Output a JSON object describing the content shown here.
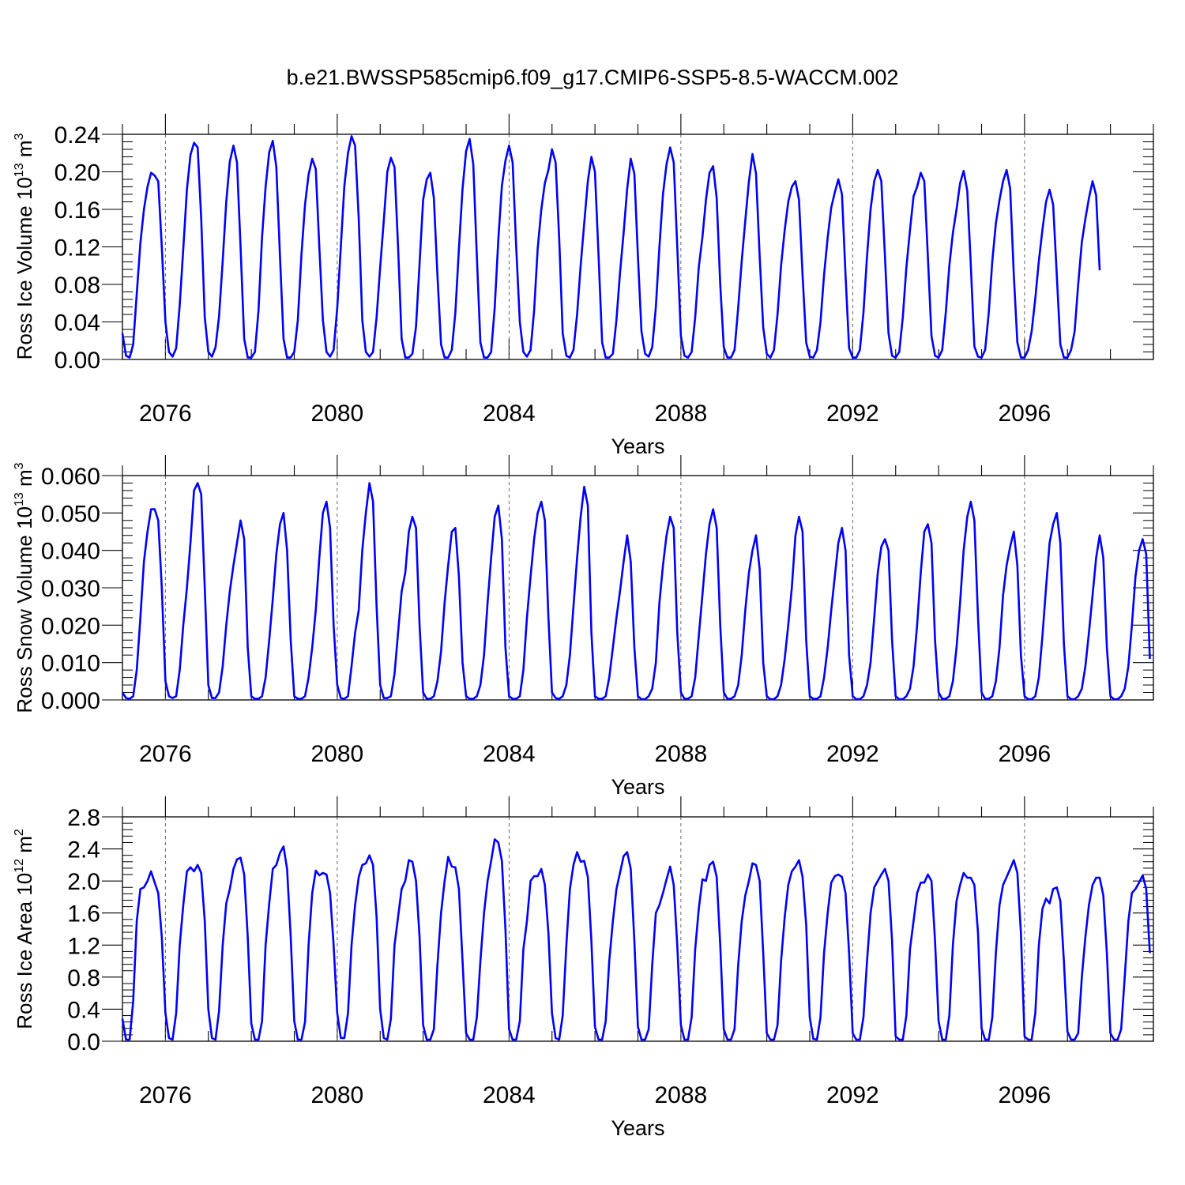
{
  "title": "b.e21.BWSSP585cmip6.f09_g17.CMIP6-SSP5-8.5-WACCM.002",
  "line_color": "#0000ff",
  "chart_data": [
    {
      "type": "line",
      "ylabel": "Ross Ice Volume 10",
      "ylabel_sup": "13",
      "ylabel_unit": " m",
      "ylabel_unit_sup": "3",
      "xlabel": "Years",
      "xlim": [
        2075,
        2099
      ],
      "ylim": [
        0.0,
        0.24
      ],
      "yticks": [
        "0.00",
        "0.04",
        "0.08",
        "0.12",
        "0.16",
        "0.20",
        "0.24"
      ],
      "xticks": [
        "2076",
        "2080",
        "2084",
        "2088",
        "2092",
        "2096"
      ],
      "grid_vertical_dashed": true,
      "series": [
        {
          "start": 2075.0,
          "step": 0.0833333,
          "peaks": [
            0.199,
            0.231,
            0.228,
            0.233,
            0.214,
            0.238,
            0.215,
            0.199,
            0.235,
            0.228,
            0.224,
            0.216,
            0.214,
            0.226,
            0.206,
            0.219,
            0.19,
            0.192,
            0.202,
            0.199,
            0.201,
            0.202,
            0.181,
            0.19
          ],
          "values": [
            0.028,
            0.004,
            0.002,
            0.016,
            0.07,
            0.124,
            0.16,
            0.184,
            0.199,
            0.196,
            0.19,
            0.12,
            0.04,
            0.008,
            0.003,
            0.012,
            0.058,
            0.118,
            0.181,
            0.218,
            0.231,
            0.226,
            0.15,
            0.045,
            0.008,
            0.003,
            0.013,
            0.046,
            0.105,
            0.168,
            0.211,
            0.228,
            0.21,
            0.12,
            0.022,
            0.002,
            0.002,
            0.008,
            0.052,
            0.13,
            0.184,
            0.221,
            0.233,
            0.205,
            0.11,
            0.022,
            0.002,
            0.002,
            0.008,
            0.042,
            0.112,
            0.165,
            0.197,
            0.214,
            0.203,
            0.12,
            0.042,
            0.008,
            0.003,
            0.01,
            0.055,
            0.12,
            0.185,
            0.22,
            0.238,
            0.228,
            0.15,
            0.042,
            0.008,
            0.003,
            0.008,
            0.045,
            0.098,
            0.148,
            0.2,
            0.215,
            0.205,
            0.12,
            0.022,
            0.002,
            0.002,
            0.006,
            0.035,
            0.102,
            0.17,
            0.192,
            0.199,
            0.172,
            0.09,
            0.016,
            0.002,
            0.002,
            0.01,
            0.05,
            0.118,
            0.182,
            0.222,
            0.235,
            0.208,
            0.11,
            0.018,
            0.002,
            0.002,
            0.008,
            0.055,
            0.128,
            0.185,
            0.212,
            0.228,
            0.21,
            0.12,
            0.04,
            0.008,
            0.003,
            0.01,
            0.052,
            0.118,
            0.16,
            0.188,
            0.202,
            0.224,
            0.21,
            0.13,
            0.028,
            0.004,
            0.002,
            0.01,
            0.048,
            0.1,
            0.145,
            0.19,
            0.216,
            0.2,
            0.11,
            0.018,
            0.002,
            0.002,
            0.006,
            0.042,
            0.092,
            0.135,
            0.182,
            0.214,
            0.198,
            0.11,
            0.03,
            0.006,
            0.003,
            0.013,
            0.056,
            0.12,
            0.176,
            0.208,
            0.226,
            0.21,
            0.12,
            0.025,
            0.004,
            0.002,
            0.008,
            0.045,
            0.098,
            0.13,
            0.17,
            0.199,
            0.206,
            0.172,
            0.08,
            0.013,
            0.002,
            0.002,
            0.01,
            0.055,
            0.105,
            0.148,
            0.19,
            0.219,
            0.198,
            0.11,
            0.034,
            0.006,
            0.002,
            0.01,
            0.048,
            0.1,
            0.138,
            0.168,
            0.184,
            0.19,
            0.17,
            0.09,
            0.018,
            0.003,
            0.002,
            0.01,
            0.04,
            0.09,
            0.13,
            0.162,
            0.178,
            0.192,
            0.176,
            0.09,
            0.012,
            0.002,
            0.002,
            0.01,
            0.05,
            0.11,
            0.16,
            0.19,
            0.202,
            0.19,
            0.11,
            0.028,
            0.004,
            0.002,
            0.008,
            0.045,
            0.098,
            0.138,
            0.174,
            0.184,
            0.199,
            0.19,
            0.11,
            0.025,
            0.004,
            0.002,
            0.01,
            0.05,
            0.1,
            0.135,
            0.16,
            0.188,
            0.201,
            0.18,
            0.1,
            0.014,
            0.003,
            0.002,
            0.01,
            0.05,
            0.105,
            0.145,
            0.17,
            0.19,
            0.202,
            0.182,
            0.09,
            0.018,
            0.002,
            0.002,
            0.01,
            0.03,
            0.065,
            0.105,
            0.138,
            0.168,
            0.181,
            0.165,
            0.09,
            0.016,
            0.002,
            0.002,
            0.01,
            0.03,
            0.08,
            0.125,
            0.15,
            0.172,
            0.19,
            0.175,
            0.095
          ]
        }
      ]
    },
    {
      "type": "line",
      "ylabel": "Ross Snow Volume 10",
      "ylabel_sup": "13",
      "ylabel_unit": " m",
      "ylabel_unit_sup": "3",
      "xlabel": "Years",
      "xlim": [
        2075,
        2099
      ],
      "ylim": [
        0.0,
        0.06
      ],
      "yticks": [
        "0.000",
        "0.010",
        "0.020",
        "0.030",
        "0.040",
        "0.050",
        "0.060"
      ],
      "xticks": [
        "2076",
        "2080",
        "2084",
        "2088",
        "2092",
        "2096"
      ],
      "grid_vertical_dashed": true,
      "series": [
        {
          "start": 2075.0,
          "step": 0.0833333,
          "values": [
            0.002,
            0.0005,
            0.0003,
            0.001,
            0.008,
            0.022,
            0.037,
            0.045,
            0.051,
            0.051,
            0.048,
            0.03,
            0.005,
            0.001,
            0.0005,
            0.001,
            0.008,
            0.02,
            0.03,
            0.042,
            0.056,
            0.058,
            0.055,
            0.03,
            0.004,
            0.0005,
            0.0005,
            0.002,
            0.009,
            0.02,
            0.029,
            0.036,
            0.042,
            0.048,
            0.043,
            0.014,
            0.001,
            0.0003,
            0.0003,
            0.001,
            0.006,
            0.016,
            0.027,
            0.039,
            0.047,
            0.05,
            0.04,
            0.016,
            0.001,
            0.0003,
            0.0003,
            0.001,
            0.006,
            0.014,
            0.024,
            0.038,
            0.05,
            0.053,
            0.046,
            0.02,
            0.004,
            0.0005,
            0.0003,
            0.001,
            0.009,
            0.018,
            0.024,
            0.04,
            0.05,
            0.058,
            0.053,
            0.025,
            0.004,
            0.0005,
            0.0005,
            0.001,
            0.007,
            0.018,
            0.029,
            0.034,
            0.045,
            0.049,
            0.046,
            0.02,
            0.002,
            0.0003,
            0.0003,
            0.001,
            0.005,
            0.013,
            0.026,
            0.036,
            0.045,
            0.046,
            0.033,
            0.01,
            0.001,
            0.0003,
            0.0003,
            0.001,
            0.004,
            0.012,
            0.026,
            0.038,
            0.049,
            0.052,
            0.043,
            0.014,
            0.001,
            0.0003,
            0.0003,
            0.001,
            0.008,
            0.022,
            0.033,
            0.043,
            0.05,
            0.053,
            0.048,
            0.022,
            0.002,
            0.0005,
            0.0003,
            0.001,
            0.004,
            0.012,
            0.025,
            0.038,
            0.049,
            0.057,
            0.052,
            0.018,
            0.001,
            0.0003,
            0.0003,
            0.001,
            0.006,
            0.014,
            0.022,
            0.029,
            0.037,
            0.044,
            0.037,
            0.014,
            0.001,
            0.0002,
            0.0002,
            0.001,
            0.003,
            0.01,
            0.026,
            0.036,
            0.044,
            0.049,
            0.046,
            0.018,
            0.002,
            0.0003,
            0.0003,
            0.001,
            0.006,
            0.017,
            0.028,
            0.039,
            0.047,
            0.051,
            0.046,
            0.02,
            0.002,
            0.0003,
            0.0003,
            0.001,
            0.004,
            0.012,
            0.024,
            0.034,
            0.04,
            0.044,
            0.035,
            0.01,
            0.001,
            0.0002,
            0.0002,
            0.001,
            0.004,
            0.011,
            0.02,
            0.03,
            0.044,
            0.049,
            0.045,
            0.016,
            0.001,
            0.0003,
            0.0003,
            0.001,
            0.006,
            0.014,
            0.024,
            0.033,
            0.042,
            0.046,
            0.04,
            0.012,
            0.001,
            0.0002,
            0.0002,
            0.001,
            0.004,
            0.01,
            0.022,
            0.034,
            0.041,
            0.043,
            0.04,
            0.016,
            0.001,
            0.0002,
            0.0002,
            0.001,
            0.003,
            0.009,
            0.02,
            0.034,
            0.045,
            0.047,
            0.042,
            0.016,
            0.002,
            0.0003,
            0.0003,
            0.001,
            0.005,
            0.014,
            0.026,
            0.04,
            0.049,
            0.053,
            0.048,
            0.022,
            0.002,
            0.0003,
            0.0003,
            0.001,
            0.005,
            0.014,
            0.028,
            0.036,
            0.041,
            0.045,
            0.036,
            0.012,
            0.001,
            0.0002,
            0.0002,
            0.001,
            0.006,
            0.017,
            0.03,
            0.042,
            0.047,
            0.05,
            0.042,
            0.015,
            0.001,
            0.0002,
            0.0002,
            0.001,
            0.003,
            0.009,
            0.018,
            0.028,
            0.038,
            0.044,
            0.038,
            0.014,
            0.001,
            0.0002,
            0.0002,
            0.001,
            0.003,
            0.009,
            0.02,
            0.033,
            0.04,
            0.043,
            0.039,
            0.011
          ]
        }
      ]
    },
    {
      "type": "line",
      "ylabel": "Ross Ice Area 10",
      "ylabel_sup": "12",
      "ylabel_unit": " m",
      "ylabel_unit_sup": "2",
      "xlabel": "Years",
      "xlim": [
        2075,
        2099
      ],
      "ylim": [
        0.0,
        2.8
      ],
      "yticks": [
        "0.0",
        "0.4",
        "0.8",
        "1.2",
        "1.6",
        "2.0",
        "2.4",
        "2.8"
      ],
      "xticks": [
        "2076",
        "2080",
        "2084",
        "2088",
        "2092",
        "2096"
      ],
      "grid_vertical_dashed": true,
      "series": [
        {
          "start": 2075.0,
          "step": 0.0833333,
          "values": [
            0.28,
            0.02,
            0.02,
            0.5,
            1.5,
            1.9,
            1.92,
            2.0,
            2.12,
            1.98,
            1.85,
            1.3,
            0.35,
            0.04,
            0.02,
            0.35,
            1.2,
            1.7,
            2.12,
            2.17,
            2.12,
            2.2,
            2.1,
            1.5,
            0.4,
            0.04,
            0.02,
            0.38,
            1.2,
            1.72,
            1.9,
            2.15,
            2.27,
            2.29,
            2.08,
            1.3,
            0.22,
            0.02,
            0.02,
            0.25,
            1.2,
            1.72,
            2.15,
            2.2,
            2.35,
            2.43,
            2.15,
            1.3,
            0.25,
            0.02,
            0.02,
            0.24,
            1.2,
            1.85,
            2.13,
            2.07,
            2.1,
            2.08,
            1.85,
            1.2,
            0.35,
            0.04,
            0.04,
            0.35,
            1.2,
            1.7,
            2.05,
            2.2,
            2.22,
            2.32,
            2.2,
            1.55,
            0.4,
            0.04,
            0.02,
            0.28,
            1.2,
            1.55,
            1.9,
            2.0,
            2.26,
            2.24,
            2.0,
            1.3,
            0.2,
            0.02,
            0.02,
            0.15,
            0.95,
            1.6,
            2.0,
            2.3,
            2.18,
            2.17,
            1.9,
            1.0,
            0.1,
            0.02,
            0.02,
            0.3,
            1.0,
            1.6,
            2.0,
            2.25,
            2.52,
            2.48,
            2.25,
            1.4,
            0.15,
            0.02,
            0.02,
            0.25,
            1.15,
            1.5,
            2.0,
            2.06,
            2.06,
            2.15,
            1.95,
            1.35,
            0.35,
            0.04,
            0.02,
            0.32,
            1.2,
            1.9,
            2.2,
            2.36,
            2.24,
            2.25,
            2.05,
            1.25,
            0.18,
            0.02,
            0.02,
            0.25,
            1.0,
            1.5,
            1.9,
            2.1,
            2.31,
            2.36,
            2.15,
            1.25,
            0.18,
            0.02,
            0.02,
            0.15,
            0.95,
            1.6,
            1.7,
            1.85,
            2.02,
            2.18,
            1.95,
            1.2,
            0.2,
            0.02,
            0.02,
            0.3,
            1.15,
            1.65,
            2.02,
            2.0,
            2.2,
            2.24,
            2.05,
            1.2,
            0.15,
            0.02,
            0.02,
            0.15,
            0.95,
            1.5,
            1.82,
            2.0,
            2.22,
            2.2,
            2.0,
            1.1,
            0.1,
            0.02,
            0.02,
            0.2,
            1.0,
            1.55,
            1.95,
            2.12,
            2.18,
            2.26,
            2.05,
            1.45,
            0.3,
            0.03,
            0.02,
            0.3,
            1.1,
            1.6,
            1.98,
            2.06,
            2.08,
            2.05,
            1.85,
            1.1,
            0.1,
            0.02,
            0.02,
            0.3,
            1.0,
            1.6,
            1.92,
            2.0,
            2.08,
            2.15,
            2.0,
            1.25,
            0.06,
            0.02,
            0.02,
            0.32,
            1.15,
            1.5,
            1.85,
            1.98,
            1.98,
            2.08,
            2.0,
            1.25,
            0.25,
            0.02,
            0.02,
            0.32,
            1.2,
            1.75,
            1.95,
            2.1,
            2.04,
            2.04,
            1.95,
            1.35,
            0.16,
            0.02,
            0.02,
            0.3,
            1.1,
            1.7,
            1.95,
            2.05,
            2.15,
            2.26,
            2.1,
            1.35,
            0.06,
            0.02,
            0.02,
            0.35,
            1.2,
            1.65,
            1.78,
            1.72,
            1.9,
            1.92,
            1.75,
            1.0,
            0.12,
            0.02,
            0.02,
            0.1,
            0.8,
            1.3,
            1.7,
            1.95,
            2.04,
            2.04,
            1.82,
            1.1,
            0.1,
            0.02,
            0.02,
            0.15,
            0.8,
            1.5,
            1.85,
            1.9,
            1.98,
            2.07,
            1.9,
            1.1
          ]
        }
      ]
    }
  ]
}
